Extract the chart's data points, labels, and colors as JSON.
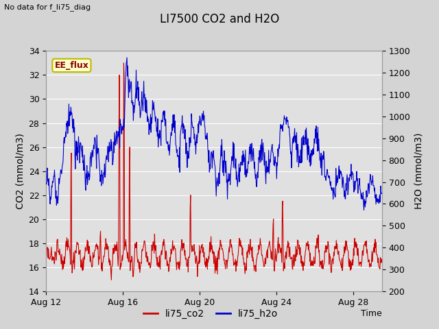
{
  "title": "LI7500 CO2 and H2O",
  "top_left_text": "No data for f_li75_diag",
  "annotation_box": "EE_flux",
  "xlabel": "Time",
  "ylabel_left": "CO2 (mmol/m3)",
  "ylabel_right": "H2O (mmol/m3)",
  "ylim_left": [
    14,
    34
  ],
  "ylim_right": [
    200,
    1300
  ],
  "yticks_left": [
    14,
    16,
    18,
    20,
    22,
    24,
    26,
    28,
    30,
    32,
    34
  ],
  "yticks_right": [
    200,
    300,
    400,
    500,
    600,
    700,
    800,
    900,
    1000,
    1100,
    1200,
    1300
  ],
  "xtick_labels": [
    "Aug 12",
    "Aug 16",
    "Aug 20",
    "Aug 24",
    "Aug 28"
  ],
  "background_color": "#d4d4d4",
  "plot_bg_color": "#e0e0e0",
  "line_co2_color": "#cc0000",
  "line_h2o_color": "#0000cc",
  "grid_color": "#ffffff",
  "legend_entries": [
    "li75_co2",
    "li75_h2o"
  ],
  "legend_colors": [
    "#cc0000",
    "#0000cc"
  ],
  "annotation_box_facecolor": "#ffffcc",
  "annotation_box_edgecolor": "#bbbb00",
  "title_fontsize": 12,
  "label_fontsize": 10,
  "tick_fontsize": 9
}
